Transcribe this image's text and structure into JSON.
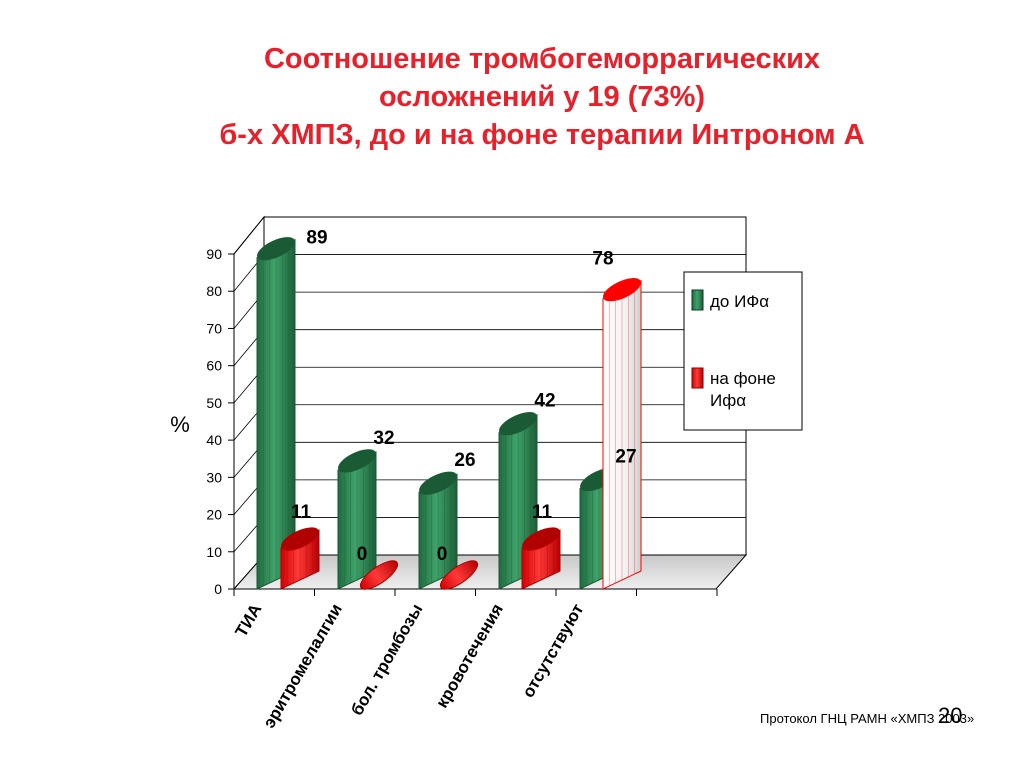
{
  "slide": {
    "title_lines": [
      "Соотношение тромбогеморрагических",
      "осложнений  у 19 (73%)",
      "б-х ХМПЗ, до и на фоне терапии Интроном А"
    ],
    "footer": "Протокол ГНЦ РАМН «ХМПЗ 2003»",
    "slide_number": "20"
  },
  "chart_data": {
    "type": "bar",
    "title": "",
    "xlabel": "",
    "ylabel": "%",
    "ylim": [
      0,
      90
    ],
    "yticks": [
      0,
      10,
      20,
      30,
      40,
      50,
      60,
      70,
      80,
      90
    ],
    "categories": [
      "ТИА",
      "эритромелалгии",
      "бол. тромбозы",
      "кровотечения",
      "отсутствуют"
    ],
    "series": [
      {
        "name": "до ИФα",
        "values": [
          89,
          32,
          26,
          42,
          27
        ],
        "color": "#2e8b57"
      },
      {
        "name": "на фоне Ифα",
        "values": [
          11,
          0,
          0,
          11,
          78
        ],
        "color": "#ff0000"
      }
    ],
    "last_red_bar_style": "white-hollow",
    "grid": true,
    "legend_position": "right"
  }
}
